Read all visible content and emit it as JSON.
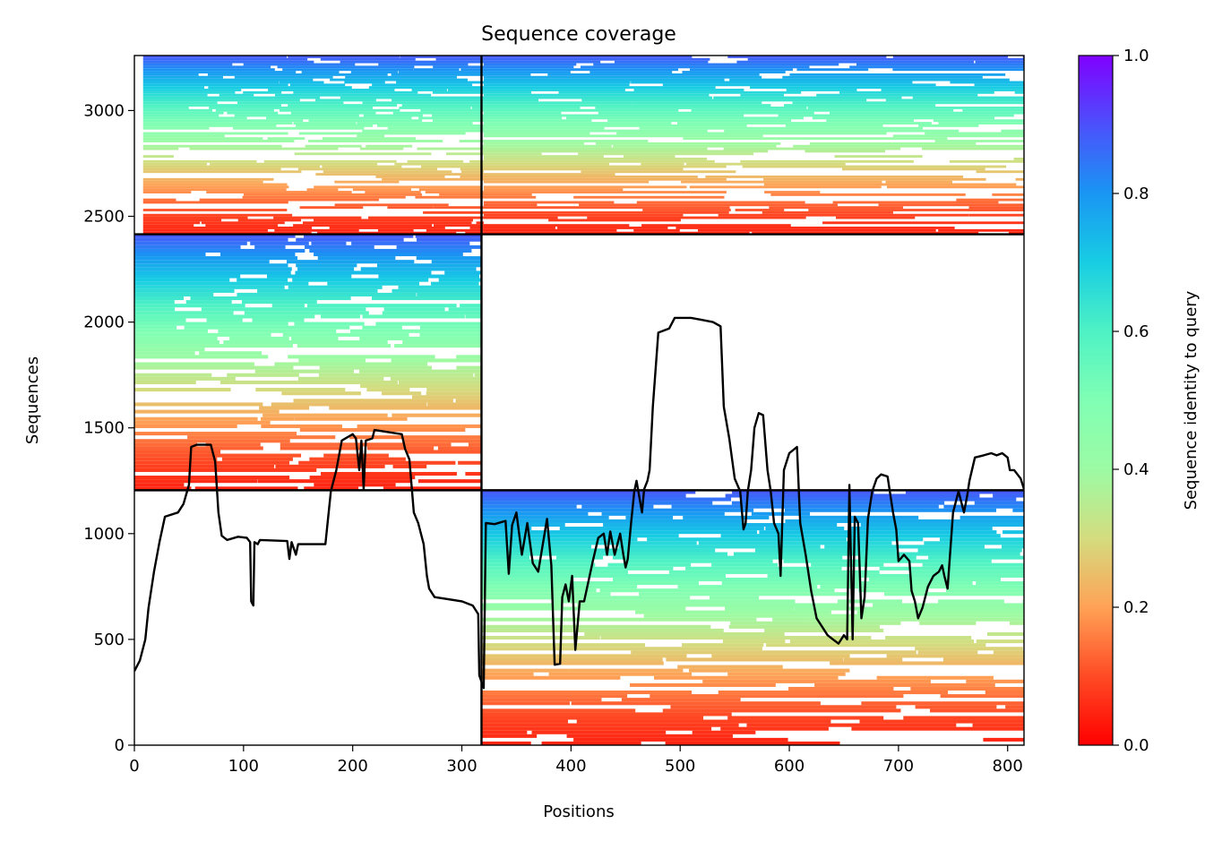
{
  "chart_data": {
    "type": "heatmap",
    "title": "Sequence coverage",
    "xlabel": "Positions",
    "ylabel": "Sequences",
    "xlim": [
      0,
      815
    ],
    "ylim": [
      0,
      3260
    ],
    "x_ticks": [
      0,
      100,
      200,
      300,
      400,
      500,
      600,
      700,
      800
    ],
    "y_ticks": [
      0,
      500,
      1000,
      1500,
      2000,
      2500,
      3000
    ],
    "colorbar": {
      "label": "Sequence identity to query",
      "range": [
        0,
        1
      ],
      "ticks": [
        "0.0",
        "0.2",
        "0.4",
        "0.6",
        "0.8",
        "1.0"
      ],
      "colormap": "rainbow_r"
    },
    "segment_boundaries": {
      "position_split": 318,
      "sequence_splits": [
        1205,
        2415
      ]
    },
    "blocks": [
      {
        "x0": 8,
        "x1": 320,
        "y0": 2415,
        "y1": 3260
      },
      {
        "x0": 320,
        "x1": 815,
        "y0": 2415,
        "y1": 3260
      },
      {
        "x0": 0,
        "x1": 318,
        "y0": 1205,
        "y1": 2415
      },
      {
        "x0": 318,
        "x1": 815,
        "y0": 0,
        "y1": 1205
      }
    ],
    "coverage_line": [
      [
        0,
        350
      ],
      [
        5,
        400
      ],
      [
        10,
        500
      ],
      [
        13,
        650
      ],
      [
        18,
        820
      ],
      [
        23,
        960
      ],
      [
        28,
        1080
      ],
      [
        40,
        1100
      ],
      [
        45,
        1140
      ],
      [
        50,
        1230
      ],
      [
        52,
        1410
      ],
      [
        57,
        1420
      ],
      [
        70,
        1420
      ],
      [
        74,
        1340
      ],
      [
        77,
        1100
      ],
      [
        80,
        990
      ],
      [
        85,
        970
      ],
      [
        95,
        985
      ],
      [
        103,
        980
      ],
      [
        106,
        960
      ],
      [
        107,
        680
      ],
      [
        109,
        660
      ],
      [
        110,
        960
      ],
      [
        113,
        950
      ],
      [
        115,
        970
      ],
      [
        140,
        965
      ],
      [
        142,
        880
      ],
      [
        144,
        960
      ],
      [
        148,
        900
      ],
      [
        150,
        950
      ],
      [
        175,
        950
      ],
      [
        180,
        1200
      ],
      [
        185,
        1300
      ],
      [
        190,
        1440
      ],
      [
        200,
        1470
      ],
      [
        203,
        1450
      ],
      [
        206,
        1300
      ],
      [
        208,
        1440
      ],
      [
        210,
        1210
      ],
      [
        212,
        1440
      ],
      [
        218,
        1450
      ],
      [
        220,
        1490
      ],
      [
        245,
        1470
      ],
      [
        248,
        1400
      ],
      [
        252,
        1350
      ],
      [
        256,
        1100
      ],
      [
        260,
        1050
      ],
      [
        265,
        950
      ],
      [
        268,
        800
      ],
      [
        270,
        740
      ],
      [
        275,
        700
      ],
      [
        300,
        680
      ],
      [
        310,
        660
      ],
      [
        315,
        620
      ],
      [
        316,
        330
      ],
      [
        320,
        270
      ],
      [
        322,
        1050
      ],
      [
        330,
        1045
      ],
      [
        340,
        1060
      ],
      [
        343,
        810
      ],
      [
        346,
        1040
      ],
      [
        350,
        1100
      ],
      [
        355,
        900
      ],
      [
        360,
        1050
      ],
      [
        365,
        860
      ],
      [
        370,
        820
      ],
      [
        378,
        1070
      ],
      [
        382,
        850
      ],
      [
        385,
        380
      ],
      [
        390,
        385
      ],
      [
        392,
        700
      ],
      [
        395,
        760
      ],
      [
        398,
        680
      ],
      [
        401,
        800
      ],
      [
        404,
        450
      ],
      [
        408,
        680
      ],
      [
        412,
        680
      ],
      [
        420,
        870
      ],
      [
        425,
        980
      ],
      [
        430,
        1000
      ],
      [
        433,
        900
      ],
      [
        436,
        1010
      ],
      [
        440,
        900
      ],
      [
        445,
        1000
      ],
      [
        448,
        900
      ],
      [
        450,
        840
      ],
      [
        452,
        880
      ],
      [
        455,
        1050
      ],
      [
        458,
        1200
      ],
      [
        460,
        1250
      ],
      [
        465,
        1100
      ],
      [
        467,
        1210
      ],
      [
        470,
        1250
      ],
      [
        472,
        1300
      ],
      [
        475,
        1600
      ],
      [
        480,
        1950
      ],
      [
        490,
        1970
      ],
      [
        495,
        2020
      ],
      [
        510,
        2020
      ],
      [
        520,
        2010
      ],
      [
        530,
        2000
      ],
      [
        537,
        1980
      ],
      [
        540,
        1600
      ],
      [
        545,
        1450
      ],
      [
        550,
        1260
      ],
      [
        555,
        1200
      ],
      [
        558,
        1020
      ],
      [
        560,
        1050
      ],
      [
        562,
        1200
      ],
      [
        565,
        1300
      ],
      [
        568,
        1500
      ],
      [
        572,
        1570
      ],
      [
        576,
        1560
      ],
      [
        580,
        1300
      ],
      [
        583,
        1200
      ],
      [
        586,
        1050
      ],
      [
        590,
        1000
      ],
      [
        592,
        800
      ],
      [
        595,
        1300
      ],
      [
        600,
        1380
      ],
      [
        607,
        1410
      ],
      [
        610,
        1050
      ],
      [
        615,
        900
      ],
      [
        620,
        730
      ],
      [
        625,
        600
      ],
      [
        630,
        560
      ],
      [
        635,
        520
      ],
      [
        640,
        500
      ],
      [
        645,
        480
      ],
      [
        650,
        520
      ],
      [
        653,
        500
      ],
      [
        655,
        1230
      ],
      [
        658,
        500
      ],
      [
        660,
        1080
      ],
      [
        663,
        1050
      ],
      [
        666,
        600
      ],
      [
        669,
        700
      ],
      [
        672,
        1070
      ],
      [
        676,
        1200
      ],
      [
        680,
        1260
      ],
      [
        684,
        1280
      ],
      [
        690,
        1270
      ],
      [
        695,
        1100
      ],
      [
        698,
        1020
      ],
      [
        700,
        870
      ],
      [
        705,
        900
      ],
      [
        710,
        870
      ],
      [
        712,
        730
      ],
      [
        715,
        680
      ],
      [
        718,
        600
      ],
      [
        722,
        650
      ],
      [
        727,
        750
      ],
      [
        732,
        800
      ],
      [
        737,
        820
      ],
      [
        740,
        850
      ],
      [
        742,
        800
      ],
      [
        745,
        740
      ],
      [
        750,
        1100
      ],
      [
        755,
        1200
      ],
      [
        760,
        1100
      ],
      [
        763,
        1180
      ],
      [
        765,
        1250
      ],
      [
        770,
        1360
      ],
      [
        778,
        1370
      ],
      [
        785,
        1380
      ],
      [
        790,
        1370
      ],
      [
        795,
        1380
      ],
      [
        800,
        1360
      ],
      [
        802,
        1300
      ],
      [
        806,
        1300
      ],
      [
        809,
        1280
      ],
      [
        812,
        1260
      ],
      [
        815,
        1210
      ]
    ]
  }
}
